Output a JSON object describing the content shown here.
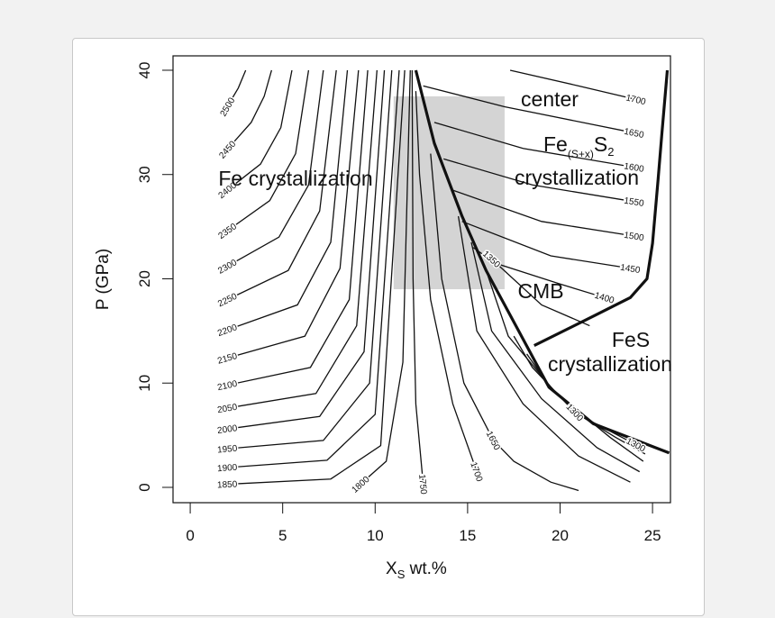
{
  "chart_data": {
    "type": "contour",
    "y_label": "P (GPa)",
    "x_label": [
      "X",
      "S",
      " wt.%"
    ],
    "xlim": [
      -0.93,
      25.97
    ],
    "ylim": [
      -1.47,
      41.38
    ],
    "xticks": [
      0,
      5,
      10,
      15,
      20,
      25
    ],
    "yticks": [
      0,
      10,
      20,
      30,
      40
    ],
    "line_color": "#111111",
    "region": {
      "x": [
        11,
        17
      ],
      "y": [
        19,
        37.5
      ],
      "color": "#d4d4d4"
    },
    "contours": [
      {
        "level": 2500,
        "x": [
          2.0,
          2.6,
          3.0
        ],
        "y": [
          36.5,
          38.3,
          40
        ]
      },
      {
        "level": 2450,
        "x": [
          2.0,
          3.3,
          4.0,
          4.4
        ],
        "y": [
          32.4,
          35,
          37.5,
          40
        ]
      },
      {
        "level": 2400,
        "x": [
          2.0,
          3.8,
          4.9,
          5.5
        ],
        "y": [
          28.5,
          31,
          34.5,
          40
        ]
      },
      {
        "level": 2350,
        "x": [
          2.0,
          4.3,
          5.7,
          6.4
        ],
        "y": [
          24.6,
          27.5,
          32,
          40
        ]
      },
      {
        "level": 2300,
        "x": [
          2.0,
          4.8,
          6.4,
          7.2
        ],
        "y": [
          21.2,
          24,
          29,
          40
        ]
      },
      {
        "level": 2250,
        "x": [
          2.0,
          5.3,
          7.0,
          7.9
        ],
        "y": [
          18,
          20.8,
          26.5,
          40
        ]
      },
      {
        "level": 2200,
        "x": [
          2.0,
          5.8,
          7.6,
          8.5
        ],
        "y": [
          15.1,
          17.5,
          23.5,
          40
        ]
      },
      {
        "level": 2150,
        "x": [
          2.0,
          6.2,
          8.1,
          9.1
        ],
        "y": [
          12.4,
          14.5,
          21,
          40
        ]
      },
      {
        "level": 2100,
        "x": [
          2.0,
          6.5,
          8.6,
          9.6
        ],
        "y": [
          9.8,
          11.5,
          18,
          40
        ]
      },
      {
        "level": 2050,
        "x": [
          2.0,
          6.8,
          9.0,
          10.1
        ],
        "y": [
          7.6,
          9,
          15.5,
          40
        ]
      },
      {
        "level": 2000,
        "x": [
          2.0,
          7.0,
          9.4,
          10.5
        ],
        "y": [
          5.6,
          6.8,
          13,
          40
        ]
      },
      {
        "level": 1950,
        "x": [
          2.0,
          7.2,
          9.7,
          10.9
        ],
        "y": [
          3.7,
          4.5,
          10,
          40
        ]
      },
      {
        "level": 1900,
        "x": [
          2.0,
          7.4,
          10.0,
          11.3
        ],
        "y": [
          1.9,
          2.6,
          7,
          40
        ]
      },
      {
        "level": 1850,
        "x": [
          2.0,
          7.6,
          10.3,
          11.6
        ],
        "y": [
          0.3,
          0.8,
          4,
          40
        ]
      },
      {
        "level": 1800,
        "x": [
          9.2,
          10.6,
          11.5,
          11.9
        ],
        "y": [
          0.3,
          2.5,
          12,
          40
        ]
      },
      {
        "level": 1750,
        "x": [
          12.6,
          12.2,
          12.05,
          12.0
        ],
        "y": [
          0.3,
          8,
          20,
          40
        ]
      },
      {
        "level": 1700,
        "x": [
          15.5,
          14.2,
          13.0,
          12.4,
          12.2
        ],
        "y": [
          1.5,
          8,
          18,
          30,
          38
        ]
      },
      {
        "level": 1650,
        "x": [
          16.4,
          14.8,
          13.6,
          13.0
        ],
        "y": [
          4.5,
          10,
          20,
          32
        ]
      },
      {
        "level": null,
        "x": [
          16.4,
          17.5,
          19.5,
          21.0
        ],
        "y": [
          4.5,
          2.5,
          0.5,
          -0.3
        ]
      },
      {
        "level": null,
        "x": [
          14.5,
          15.5,
          18.0,
          21.0,
          23.8
        ],
        "y": [
          26,
          15,
          8,
          3,
          0.5
        ]
      },
      {
        "level": null,
        "x": [
          15.2,
          16.3,
          19.0,
          22.0,
          24.3
        ],
        "y": [
          23.5,
          15,
          8.5,
          3.8,
          1.5
        ]
      },
      {
        "level": null,
        "x": [
          16.0,
          17.2,
          19.8,
          22.7,
          24.5
        ],
        "y": [
          20.8,
          14.5,
          9,
          4.8,
          2.5
        ]
      },
      {
        "level": 1300,
        "x": [
          20.8,
          18.5,
          17.5
        ],
        "y": [
          7.2,
          11.5,
          14.5
        ]
      },
      {
        "level": null,
        "x": [
          20.8,
          23.0,
          24.6
        ],
        "y": [
          7.2,
          4.8,
          3.2
        ]
      },
      {
        "level": 1300,
        "x": [
          24.1,
          21.5,
          19.5,
          18.2
        ],
        "y": [
          4.1,
          6.5,
          9.5,
          12.8
        ]
      },
      {
        "level": 1700,
        "x": [
          24.1,
          21.0,
          17.3
        ],
        "y": [
          37.2,
          38.5,
          40
        ]
      },
      {
        "level": 1650,
        "x": [
          24.0,
          17.0,
          12.6
        ],
        "y": [
          34.0,
          36.5,
          38.5
        ]
      },
      {
        "level": 1600,
        "x": [
          24.0,
          18.0,
          13.2
        ],
        "y": [
          30.7,
          32.5,
          35
        ]
      },
      {
        "level": 1550,
        "x": [
          24.0,
          18.5,
          13.7
        ],
        "y": [
          27.4,
          29,
          31.5
        ]
      },
      {
        "level": 1500,
        "x": [
          24.0,
          19.0,
          14.2
        ],
        "y": [
          24.1,
          25.5,
          28.5
        ]
      },
      {
        "level": 1450,
        "x": [
          23.8,
          19.5,
          14.7
        ],
        "y": [
          21.0,
          22.2,
          25.5
        ]
      },
      {
        "level": 1400,
        "x": [
          22.4,
          20.0,
          16.5,
          15.3
        ],
        "y": [
          18.2,
          19.5,
          21.5,
          23
        ]
      },
      {
        "level": 1350,
        "x": [
          16.3,
          19.0,
          21.6
        ],
        "y": [
          21.9,
          17.5,
          15.5
        ]
      }
    ],
    "boundaries": [
      {
        "x": [
          12.2,
          13.2,
          14.7,
          16.0,
          17.7,
          19.4,
          21.8,
          25.9
        ],
        "y": [
          40,
          33,
          26,
          20.8,
          15.2,
          9.6,
          6.1,
          3.3
        ]
      },
      {
        "x": [
          18.6,
          21.9,
          23.8,
          24.7,
          25.0,
          25.3,
          25.5,
          25.8
        ],
        "y": [
          13.6,
          16.5,
          18.2,
          20,
          23.4,
          29.5,
          33.8,
          40
        ]
      }
    ],
    "annotations": [
      "Fe crystallization",
      "center",
      "crystallization",
      "CMB",
      "FeS",
      "crystallization"
    ],
    "fes2_label": [
      "Fe",
      "(S+x)",
      "S",
      "2"
    ]
  }
}
